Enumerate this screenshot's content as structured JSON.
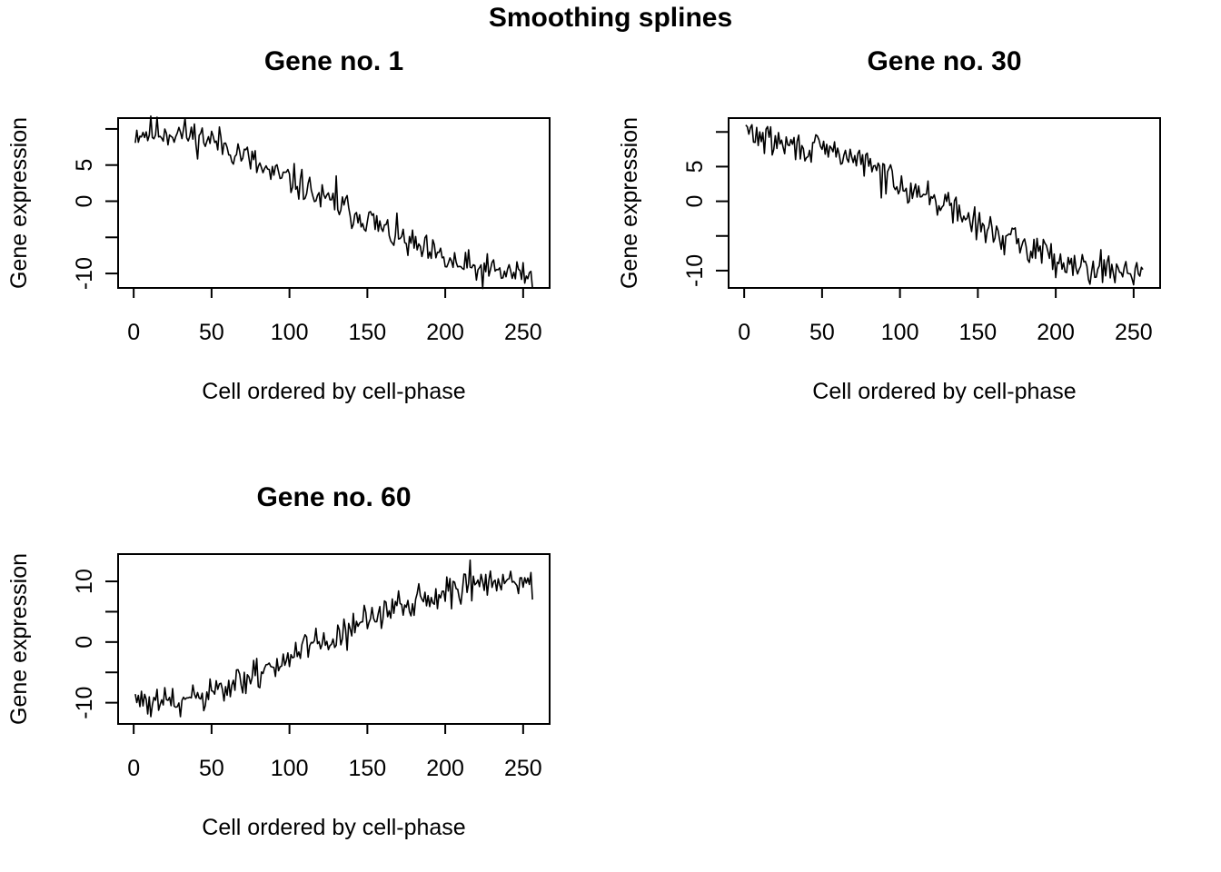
{
  "figure": {
    "title": "Smoothing splines"
  },
  "chart_data": [
    {
      "type": "line",
      "title": "Gene no. 1",
      "xlabel": "Cell ordered by cell-phase",
      "ylabel": "Gene expression",
      "xlim": [
        -10,
        267
      ],
      "ylim": [
        -12,
        11.5
      ],
      "xticks": [
        0,
        50,
        100,
        150,
        200,
        250
      ],
      "yticks": [
        -10,
        -5,
        0,
        5,
        10
      ],
      "ytick_labels": [
        "-10",
        "",
        "0",
        "5",
        ""
      ],
      "grid": false,
      "legend": "none",
      "n_points": 256,
      "anchors": {
        "x": [
          1,
          10,
          20,
          30,
          40,
          50,
          60,
          70,
          80,
          90,
          100,
          110,
          120,
          130,
          140,
          150,
          160,
          170,
          180,
          190,
          200,
          210,
          220,
          230,
          240,
          250,
          256
        ],
        "y": [
          9.5,
          9.5,
          9.6,
          9.4,
          9.0,
          8.5,
          7.5,
          6.5,
          4.8,
          3.5,
          3.0,
          2.0,
          0.2,
          -0.5,
          -1.5,
          -2.3,
          -4.0,
          -5.0,
          -6.3,
          -7.3,
          -8.2,
          -9.0,
          -9.5,
          -9.7,
          -9.9,
          -10.1,
          -10.2
        ]
      },
      "noise_amplitude": 1.7,
      "noise_seed": 11,
      "spikes": [
        {
          "x": 130,
          "y": 3.5
        }
      ]
    },
    {
      "type": "line",
      "title": "Gene no. 30",
      "xlabel": "Cell ordered by cell-phase",
      "ylabel": "Gene expression",
      "xlim": [
        -10,
        267
      ],
      "ylim": [
        -12.5,
        12
      ],
      "xticks": [
        0,
        50,
        100,
        150,
        200,
        250
      ],
      "yticks": [
        -10,
        -5,
        0,
        5,
        10
      ],
      "ytick_labels": [
        "-10",
        "",
        "0",
        "5",
        ""
      ],
      "grid": false,
      "legend": "none",
      "n_points": 256,
      "anchors": {
        "x": [
          1,
          10,
          20,
          30,
          40,
          50,
          60,
          70,
          80,
          90,
          100,
          110,
          120,
          130,
          140,
          150,
          160,
          170,
          180,
          190,
          200,
          210,
          220,
          230,
          240,
          250,
          256
        ],
        "y": [
          10.3,
          9.3,
          8.5,
          8.0,
          7.6,
          7.3,
          7.0,
          6.3,
          5.3,
          4.0,
          2.8,
          1.5,
          0.5,
          -0.5,
          -2.0,
          -3.5,
          -4.5,
          -5.5,
          -6.5,
          -7.0,
          -8.0,
          -8.8,
          -9.3,
          -9.6,
          -9.9,
          -10.0,
          -9.3
        ]
      },
      "noise_amplitude": 1.6,
      "noise_seed": 29,
      "spikes": [
        {
          "x": 88,
          "y": 0.5
        },
        {
          "x": 200,
          "y": -11.0
        }
      ]
    },
    {
      "type": "line",
      "title": "Gene no. 60",
      "xlabel": "Cell ordered by cell-phase",
      "ylabel": "Gene expression",
      "xlim": [
        -10,
        267
      ],
      "ylim": [
        -13.5,
        14.5
      ],
      "xticks": [
        0,
        50,
        100,
        150,
        200,
        250
      ],
      "yticks": [
        -10,
        -5,
        0,
        5,
        10
      ],
      "ytick_labels": [
        "-10",
        "",
        "0",
        "",
        "10"
      ],
      "grid": false,
      "legend": "none",
      "n_points": 256,
      "anchors": {
        "x": [
          1,
          10,
          20,
          30,
          40,
          50,
          60,
          70,
          80,
          90,
          100,
          110,
          120,
          130,
          140,
          150,
          160,
          170,
          180,
          190,
          200,
          210,
          220,
          230,
          240,
          250,
          256
        ],
        "y": [
          -9.0,
          -10.5,
          -10.0,
          -9.8,
          -9.3,
          -8.8,
          -7.7,
          -6.5,
          -5.3,
          -3.8,
          -2.5,
          -1.3,
          -0.3,
          1.0,
          2.3,
          3.5,
          4.7,
          5.8,
          6.8,
          7.5,
          8.3,
          9.0,
          9.3,
          9.6,
          10.0,
          10.1,
          10.4
        ]
      },
      "noise_amplitude": 2.0,
      "noise_seed": 61,
      "spikes": [
        {
          "x": 30,
          "y": -12.3
        },
        {
          "x": 216,
          "y": 13.5
        },
        {
          "x": 256,
          "y": 7.0
        }
      ]
    }
  ]
}
